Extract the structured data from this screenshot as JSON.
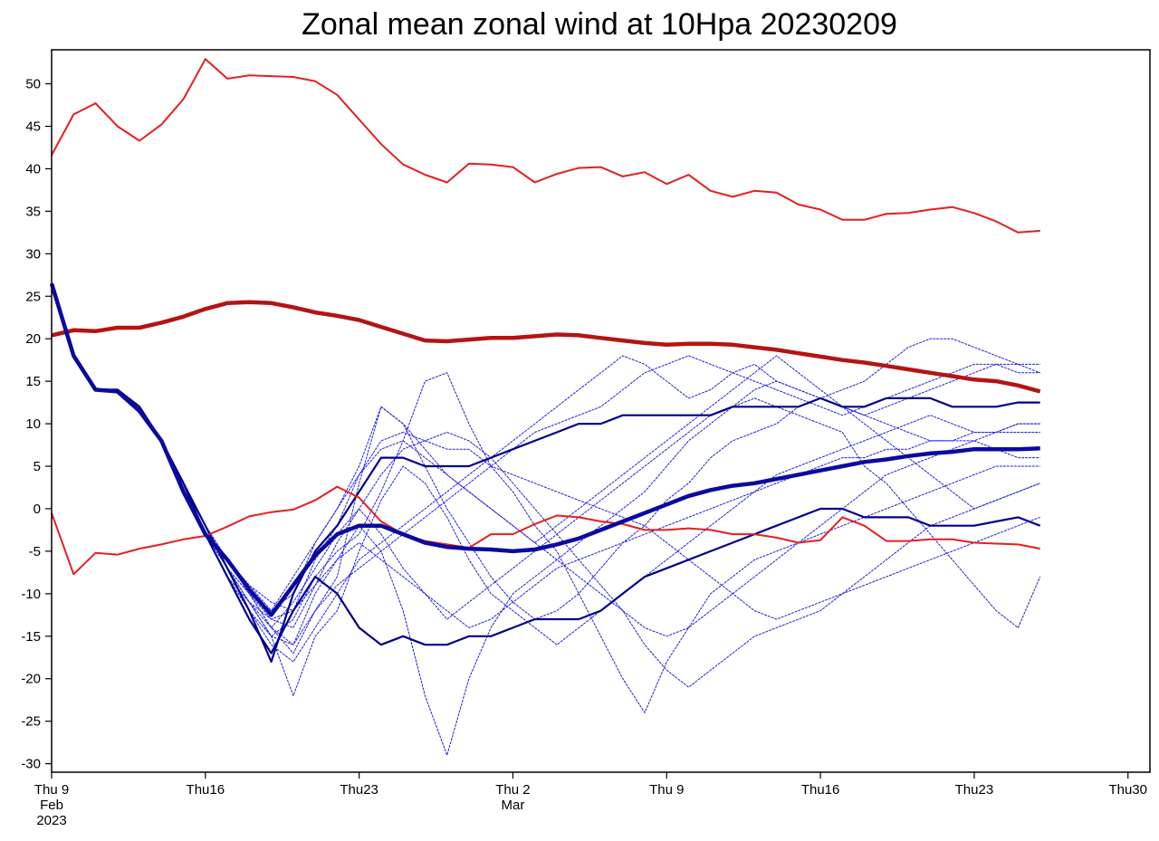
{
  "chart_data": {
    "type": "line",
    "title": "Zonal mean zonal wind at 10Hpa 20230209",
    "xlabel": "",
    "ylabel": "",
    "x_start": "2023-02-09",
    "x_step": "1 day",
    "xlim": [
      "2023-02-09",
      "2023-03-31"
    ],
    "ylim": [
      -31,
      54
    ],
    "yticks": [
      -30,
      -25,
      -20,
      -15,
      -10,
      -5,
      0,
      5,
      10,
      15,
      20,
      25,
      30,
      35,
      40,
      45,
      50
    ],
    "xticks": [
      {
        "date": "2023-02-09",
        "label": [
          "Thu 9",
          "Feb",
          "2023"
        ]
      },
      {
        "date": "2023-02-16",
        "label": [
          "Thu16"
        ]
      },
      {
        "date": "2023-02-23",
        "label": [
          "Thu23"
        ]
      },
      {
        "date": "2023-03-02",
        "label": [
          "Thu 2",
          "Mar"
        ]
      },
      {
        "date": "2023-03-09",
        "label": [
          "Thu 9"
        ]
      },
      {
        "date": "2023-03-16",
        "label": [
          "Thu16"
        ]
      },
      {
        "date": "2023-03-23",
        "label": [
          "Thu23"
        ]
      },
      {
        "date": "2023-03-30",
        "label": [
          "Thu30"
        ]
      }
    ],
    "grid": false,
    "colors": {
      "member": "#1e1ee6",
      "highlight_member": "#00008b",
      "ensemble_mean": "#0a0aa0",
      "climate_extreme": "#e61e1e",
      "climate_mean": "#b41414"
    },
    "climate_max": [
      41.6,
      46.4,
      47.7,
      45,
      43.3,
      45.2,
      48.2,
      52.9,
      50.6,
      51,
      50.9,
      50.8,
      50.3,
      48.7,
      45.8,
      42.9,
      40.5,
      39.3,
      38.4,
      40.6,
      40.5,
      40.2,
      38.4,
      39.4,
      40.1,
      40.2,
      39.1,
      39.6,
      38.2,
      39.3,
      37.4,
      36.7,
      37.4,
      37.2,
      35.8,
      35.2,
      34,
      34,
      34.7,
      34.8,
      35.2,
      35.5,
      34.8,
      33.8,
      32.5,
      32.7
    ],
    "climate_mean": [
      20.4,
      21,
      20.9,
      21.3,
      21.3,
      21.9,
      22.6,
      23.5,
      24.2,
      24.3,
      24.2,
      23.7,
      23.1,
      22.7,
      22.2,
      21.4,
      20.6,
      19.8,
      19.7,
      19.9,
      20.1,
      20.1,
      20.3,
      20.5,
      20.4,
      20.1,
      19.8,
      19.5,
      19.3,
      19.4,
      19.4,
      19.3,
      19.0,
      18.7,
      18.3,
      17.9,
      17.5,
      17.2,
      16.8,
      16.4,
      16.0,
      15.6,
      15.2,
      15.0,
      14.5,
      13.8
    ],
    "climate_min": [
      -0.5,
      -7.7,
      -5.2,
      -5.4,
      -4.7,
      -4.2,
      -3.6,
      -3.2,
      -2.1,
      -0.9,
      -0.4,
      -0.1,
      1,
      2.6,
      1.3,
      -1.5,
      -3,
      -3.8,
      -4.2,
      -4.6,
      -3,
      -3,
      -1.8,
      -0.8,
      -1,
      -1.5,
      -1.8,
      -2.5,
      -2.5,
      -2.3,
      -2.5,
      -3,
      -3,
      -3.4,
      -4,
      -3.7,
      -1,
      -2,
      -3.8,
      -3.8,
      -3.6,
      -3.6,
      -4,
      -4.1,
      -4.2,
      -4.7
    ],
    "ensemble_mean": [
      26.5,
      18,
      14,
      13.8,
      11.5,
      8,
      2,
      -3,
      -6,
      -9.5,
      -12.5,
      -9,
      -5.5,
      -3,
      -2,
      -2,
      -3,
      -4,
      -4.5,
      -4.7,
      -4.8,
      -5,
      -4.8,
      -4.2,
      -3.5,
      -2.5,
      -1.5,
      -0.5,
      0.5,
      1.5,
      2.2,
      2.7,
      3,
      3.5,
      4,
      4.5,
      5,
      5.5,
      5.8,
      6.2,
      6.5,
      6.7,
      7,
      7,
      7,
      7.1
    ],
    "highlight_members": [
      [
        26.5,
        18,
        14,
        14,
        12,
        8,
        3,
        -2,
        -7,
        -12,
        -18,
        -10,
        -5,
        -2,
        2,
        6,
        6,
        5,
        5,
        5,
        6,
        7,
        8,
        9,
        10,
        10,
        11,
        11,
        11,
        11,
        11,
        12,
        12,
        12,
        12,
        13,
        12,
        12,
        13,
        13,
        13,
        12,
        12,
        12,
        12.5,
        12.5
      ],
      [
        26.5,
        18,
        14,
        14,
        12,
        8,
        3,
        -3,
        -8,
        -13,
        -17,
        -12,
        -8,
        -10,
        -14,
        -16,
        -15,
        -16,
        -16,
        -15,
        -15,
        -14,
        -13,
        -13,
        -13,
        -12,
        -10,
        -8,
        -7,
        -6,
        -5,
        -4,
        -3,
        -2,
        -1,
        0,
        0,
        -1,
        -1,
        -1,
        -2,
        -2,
        -2,
        -1.5,
        -1,
        -2
      ]
    ],
    "members": [
      [
        26.5,
        18,
        14,
        14,
        12,
        8,
        3,
        -3,
        -8,
        -11,
        -15,
        -22,
        -15,
        -12,
        -5,
        1,
        5,
        3,
        -1,
        -6,
        -10,
        -12,
        -14,
        -16,
        -14,
        -12,
        -10,
        -8,
        -6,
        -4,
        -2,
        0,
        2,
        4,
        5,
        6,
        7,
        8,
        9,
        10,
        11,
        10,
        9,
        9,
        10,
        10
      ],
      [
        26.5,
        18,
        14,
        14,
        12,
        8,
        3,
        -2,
        -6,
        -10,
        -14,
        -17,
        -12,
        -8,
        3,
        12,
        10,
        5,
        0,
        -4,
        -8,
        -11,
        -13,
        -12,
        -10,
        -7,
        -4,
        -2,
        1,
        3,
        6,
        8,
        9,
        10,
        12,
        13,
        12,
        11,
        12,
        13,
        14,
        15,
        16,
        17,
        17,
        17
      ],
      [
        26.5,
        18,
        14,
        14,
        12,
        8,
        3,
        -3,
        -7,
        -11,
        -13,
        -14,
        -9,
        -4,
        0,
        4,
        7,
        8,
        9,
        8,
        6,
        3,
        0,
        -3,
        -6,
        -9,
        -12,
        -14,
        -15,
        -14,
        -12,
        -10,
        -8,
        -6,
        -4,
        -2,
        0,
        2,
        4,
        5,
        6,
        7,
        8,
        9,
        9,
        9
      ],
      [
        26.5,
        18,
        14,
        14,
        12,
        8,
        3,
        -2,
        -6,
        -10,
        -14,
        -16,
        -10,
        -6,
        -2,
        -5,
        -12,
        -22,
        -29,
        -20,
        -14,
        -10,
        -8,
        -6,
        -4,
        -2,
        0,
        2,
        5,
        8,
        10,
        12,
        14,
        15,
        14,
        13,
        12,
        11,
        10,
        9,
        8,
        8,
        8,
        7,
        6,
        6
      ],
      [
        26.5,
        18,
        14,
        14,
        12,
        8,
        3,
        -3,
        -7,
        -11,
        -15,
        -13,
        -8,
        -5,
        -3,
        2,
        8,
        15,
        16,
        10,
        5,
        2,
        -2,
        -5,
        -10,
        -15,
        -20,
        -24,
        -18,
        -14,
        -10,
        -8,
        -6,
        -5,
        -4,
        -3,
        -2,
        -1,
        0,
        1,
        2,
        3,
        4,
        5,
        5,
        5
      ],
      [
        26.5,
        18,
        14,
        14,
        12,
        8,
        3,
        -2,
        -6,
        -9,
        -12,
        -10,
        -4,
        0,
        5,
        12,
        10,
        7,
        4,
        2,
        0,
        -2,
        -4,
        -6,
        -8,
        -10,
        -12,
        -16,
        -19,
        -21,
        -19,
        -17,
        -15,
        -14,
        -13,
        -12,
        -10,
        -8,
        -6,
        -4,
        -2,
        -1,
        0,
        1,
        2,
        3
      ],
      [
        26.5,
        18,
        14,
        14,
        12,
        8,
        3,
        -3,
        -8,
        -12,
        -16,
        -18,
        -14,
        -10,
        -6,
        -4,
        -2,
        0,
        2,
        4,
        6,
        8,
        10,
        12,
        14,
        16,
        18,
        17,
        15,
        13,
        14,
        16,
        17,
        15,
        14,
        13,
        14,
        15,
        17,
        19,
        20,
        20,
        19,
        18,
        17,
        16
      ],
      [
        26.5,
        18,
        14,
        14,
        12,
        8,
        3,
        -2,
        -7,
        -11,
        -14,
        -11,
        -7,
        -3,
        0,
        -3,
        -7,
        -10,
        -13,
        -11,
        -9,
        -7,
        -5,
        -3,
        -1,
        1,
        3,
        5,
        7,
        9,
        11,
        12,
        13,
        12,
        11,
        10,
        9,
        5,
        3,
        0,
        -3,
        -6,
        -9,
        -12,
        -14,
        -8
      ],
      [
        26.5,
        18,
        14,
        14,
        12,
        8,
        3,
        -3,
        -7,
        -10,
        -12,
        -8,
        -4,
        0,
        4,
        7,
        8,
        6,
        4,
        2,
        0,
        -2,
        -4,
        -2,
        0,
        2,
        4,
        6,
        8,
        10,
        12,
        14,
        16,
        18,
        16,
        14,
        12,
        10,
        8,
        6,
        4,
        2,
        0,
        1,
        2,
        3
      ],
      [
        26.5,
        18,
        14,
        14,
        12,
        8,
        3,
        -2,
        -6,
        -9,
        -11,
        -12,
        -6,
        -2,
        4,
        8,
        9,
        8,
        7,
        7,
        5,
        4,
        3,
        2,
        1,
        0,
        -1,
        -2,
        -4,
        -6,
        -8,
        -10,
        -12,
        -13,
        -12,
        -11,
        -10,
        -9,
        -8,
        -7,
        -6,
        -5,
        -4,
        -3,
        -2,
        -1
      ],
      [
        26.5,
        18,
        14,
        14,
        12,
        8,
        3,
        -3,
        -8,
        -12,
        -15,
        -16,
        -12,
        -9,
        -7,
        -5,
        -3,
        -1,
        1,
        3,
        5,
        7,
        9,
        10,
        11,
        12,
        14,
        16,
        17,
        18,
        17,
        16,
        15,
        14,
        13,
        12,
        11,
        12,
        13,
        14,
        15,
        16,
        17,
        17,
        16,
        16
      ],
      [
        26.5,
        18,
        14,
        14,
        12,
        8,
        3,
        -3,
        -7,
        -10,
        -13,
        -12,
        -9,
        -6,
        -4,
        -6,
        -8,
        -10,
        -12,
        -14,
        -13,
        -11,
        -9,
        -7,
        -6,
        -5,
        -4,
        -3,
        -2,
        -1,
        0,
        1,
        2,
        3,
        4,
        5,
        6,
        6,
        7,
        7,
        8,
        8,
        9,
        9,
        10,
        10
      ]
    ]
  }
}
